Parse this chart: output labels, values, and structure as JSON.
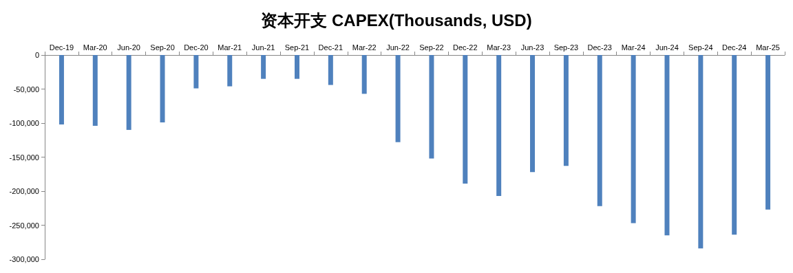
{
  "chart_data": {
    "type": "bar",
    "title": "资本开支 CAPEX(Thousands, USD)",
    "categories": [
      "Dec-19",
      "Mar-20",
      "Jun-20",
      "Sep-20",
      "Dec-20",
      "Mar-21",
      "Jun-21",
      "Sep-21",
      "Dec-21",
      "Mar-22",
      "Jun-22",
      "Sep-22",
      "Dec-22",
      "Mar-23",
      "Jun-23",
      "Sep-23",
      "Dec-23",
      "Mar-24",
      "Jun-24",
      "Sep-24",
      "Dec-24",
      "Mar-25"
    ],
    "values": [
      -102000,
      -104000,
      -110000,
      -99000,
      -49000,
      -46000,
      -35000,
      -35000,
      -44000,
      -57000,
      -128000,
      -152000,
      -189000,
      -207000,
      -172000,
      -163000,
      -222000,
      -247000,
      -265000,
      -284000,
      -264000,
      -227000
    ],
    "color": "#4f81bd",
    "ylim": [
      -300000,
      0
    ],
    "yticks": [
      {
        "value": -300000,
        "label": "-300,000"
      },
      {
        "value": -250000,
        "label": "-250,000"
      },
      {
        "value": -200000,
        "label": "-200,000"
      },
      {
        "value": -150000,
        "label": "-150,000"
      },
      {
        "value": -100000,
        "label": "-100,000"
      },
      {
        "value": -50000,
        "label": "-50,000"
      },
      0
    ],
    "grid": false
  }
}
